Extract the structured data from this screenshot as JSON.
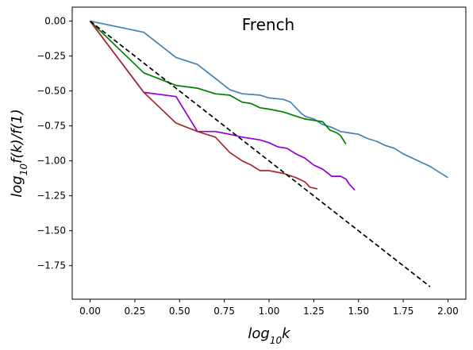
{
  "chart_data": {
    "type": "line",
    "title": "French",
    "xlabel": "log10k",
    "ylabel": "log10f(k)/f(1)",
    "xlim": [
      -0.1,
      2.1
    ],
    "ylim": [
      -1.99,
      0.1
    ],
    "grid": false,
    "x_ticks": [
      "0.00",
      "0.25",
      "0.50",
      "0.75",
      "1.00",
      "1.25",
      "1.50",
      "1.75",
      "2.00"
    ],
    "y_ticks": [
      "0.00",
      "-0.25",
      "-0.50",
      "-0.75",
      "-1.00",
      "-1.25",
      "-1.50",
      "-1.75"
    ],
    "series": [
      {
        "color": "#4682b4",
        "style": "solid",
        "points": [
          [
            0,
            0
          ],
          [
            0.3,
            -0.08
          ],
          [
            0.48,
            -0.26
          ],
          [
            0.6,
            -0.31
          ],
          [
            0.7,
            -0.41
          ],
          [
            0.78,
            -0.49
          ],
          [
            0.85,
            -0.52
          ],
          [
            0.95,
            -0.53
          ],
          [
            1.0,
            -0.55
          ],
          [
            1.08,
            -0.56
          ],
          [
            1.12,
            -0.58
          ],
          [
            1.15,
            -0.62
          ],
          [
            1.18,
            -0.66
          ],
          [
            1.2,
            -0.68
          ],
          [
            1.25,
            -0.7
          ],
          [
            1.3,
            -0.74
          ],
          [
            1.35,
            -0.76
          ],
          [
            1.4,
            -0.79
          ],
          [
            1.45,
            -0.8
          ],
          [
            1.5,
            -0.81
          ],
          [
            1.55,
            -0.84
          ],
          [
            1.6,
            -0.86
          ],
          [
            1.65,
            -0.89
          ],
          [
            1.7,
            -0.91
          ],
          [
            1.75,
            -0.95
          ],
          [
            1.8,
            -0.98
          ],
          [
            1.85,
            -1.01
          ],
          [
            1.9,
            -1.04
          ],
          [
            1.95,
            -1.08
          ],
          [
            2.0,
            -1.12
          ]
        ]
      },
      {
        "color": "#008000",
        "style": "solid",
        "points": [
          [
            0,
            0
          ],
          [
            0.3,
            -0.37
          ],
          [
            0.48,
            -0.46
          ],
          [
            0.6,
            -0.48
          ],
          [
            0.7,
            -0.52
          ],
          [
            0.78,
            -0.53
          ],
          [
            0.85,
            -0.58
          ],
          [
            0.9,
            -0.59
          ],
          [
            0.95,
            -0.62
          ],
          [
            1.0,
            -0.63
          ],
          [
            1.08,
            -0.65
          ],
          [
            1.15,
            -0.68
          ],
          [
            1.2,
            -0.7
          ],
          [
            1.25,
            -0.71
          ],
          [
            1.3,
            -0.72
          ],
          [
            1.34,
            -0.78
          ],
          [
            1.38,
            -0.8
          ],
          [
            1.4,
            -0.82
          ],
          [
            1.43,
            -0.88
          ]
        ]
      },
      {
        "color": "#9400d3",
        "style": "solid",
        "points": [
          [
            0,
            0
          ],
          [
            0.3,
            -0.51
          ],
          [
            0.48,
            -0.54
          ],
          [
            0.6,
            -0.79
          ],
          [
            0.7,
            -0.79
          ],
          [
            0.78,
            -0.81
          ],
          [
            0.85,
            -0.83
          ],
          [
            0.95,
            -0.85
          ],
          [
            1.0,
            -0.87
          ],
          [
            1.05,
            -0.9
          ],
          [
            1.1,
            -0.91
          ],
          [
            1.15,
            -0.95
          ],
          [
            1.2,
            -0.98
          ],
          [
            1.25,
            -1.03
          ],
          [
            1.3,
            -1.06
          ],
          [
            1.35,
            -1.11
          ],
          [
            1.4,
            -1.11
          ],
          [
            1.43,
            -1.13
          ],
          [
            1.45,
            -1.17
          ],
          [
            1.48,
            -1.21
          ]
        ]
      },
      {
        "color": "#a52a2a",
        "style": "solid",
        "points": [
          [
            0,
            0
          ],
          [
            0.3,
            -0.51
          ],
          [
            0.48,
            -0.73
          ],
          [
            0.6,
            -0.79
          ],
          [
            0.7,
            -0.83
          ],
          [
            0.78,
            -0.94
          ],
          [
            0.85,
            -1.0
          ],
          [
            0.9,
            -1.03
          ],
          [
            0.95,
            -1.07
          ],
          [
            1.0,
            -1.07
          ],
          [
            1.08,
            -1.09
          ],
          [
            1.15,
            -1.12
          ],
          [
            1.2,
            -1.15
          ],
          [
            1.23,
            -1.19
          ],
          [
            1.27,
            -1.2
          ]
        ]
      },
      {
        "color": "#000000",
        "style": "dashed",
        "points": [
          [
            0,
            0
          ],
          [
            1.9,
            -1.9
          ]
        ]
      }
    ]
  }
}
